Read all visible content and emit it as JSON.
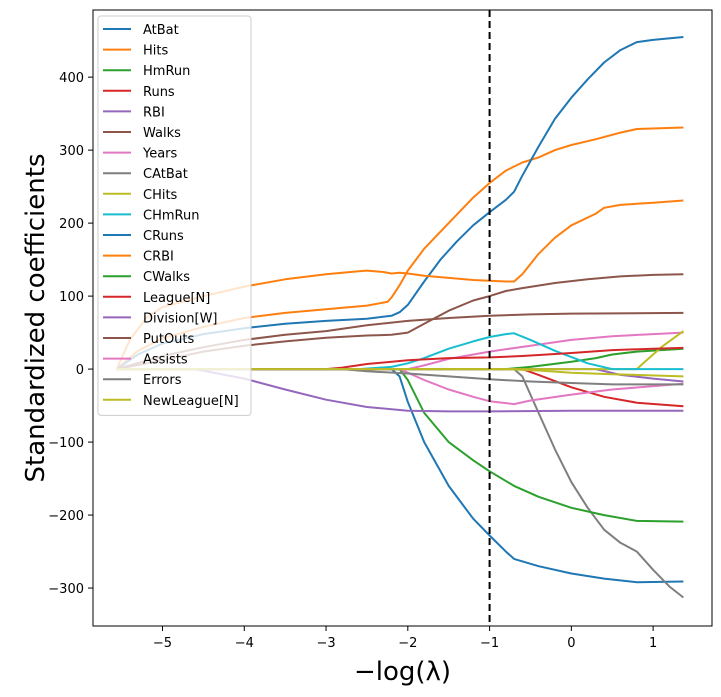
{
  "chart_data": {
    "type": "line",
    "title": "",
    "xlabel": "−log(λ)",
    "ylabel": "Standardized coefficients",
    "xlim": [
      -5.85,
      1.72
    ],
    "ylim": [
      -352,
      492
    ],
    "xticks": [
      -5,
      -4,
      -3,
      -2,
      -1,
      0,
      1
    ],
    "xtick_labels": [
      "−5",
      "−4",
      "−3",
      "−2",
      "−1",
      "0",
      "1"
    ],
    "yticks": [
      -300,
      -200,
      -100,
      0,
      100,
      200,
      300,
      400
    ],
    "ytick_labels": [
      "−300",
      "−200",
      "−100",
      "0",
      "100",
      "200",
      "300",
      "400"
    ],
    "grid": false,
    "legend_position": "upper-left",
    "vline": {
      "x": -1,
      "style": "dashed",
      "color": "#000000"
    },
    "series": [
      {
        "name": "AtBat",
        "color": "#1f77b4",
        "points": [
          [
            -5.56,
            0
          ],
          [
            -2.2,
            0
          ],
          [
            -2.1,
            -10
          ],
          [
            -2,
            -45
          ],
          [
            -1.8,
            -100
          ],
          [
            -1.5,
            -160
          ],
          [
            -1.2,
            -205
          ],
          [
            -1,
            -228
          ],
          [
            -0.8,
            -250
          ],
          [
            -0.7,
            -260
          ],
          [
            -0.4,
            -270
          ],
          [
            0,
            -280
          ],
          [
            0.4,
            -287
          ],
          [
            0.8,
            -292
          ],
          [
            1.37,
            -291
          ]
        ]
      },
      {
        "name": "Hits",
        "color": "#ff7f0e",
        "points": [
          [
            -5.56,
            0
          ],
          [
            -5.3,
            25
          ],
          [
            -5,
            42
          ],
          [
            -4.5,
            58
          ],
          [
            -4,
            70
          ],
          [
            -3.5,
            77
          ],
          [
            -3,
            82
          ],
          [
            -2.5,
            87
          ],
          [
            -2.25,
            92
          ],
          [
            -2.2,
            98
          ],
          [
            -2.1,
            115
          ],
          [
            -2,
            135
          ],
          [
            -1.8,
            165
          ],
          [
            -1.5,
            200
          ],
          [
            -1.2,
            235
          ],
          [
            -1,
            255
          ],
          [
            -0.8,
            272
          ],
          [
            -0.6,
            283
          ],
          [
            -0.4,
            290
          ],
          [
            -0.2,
            300
          ],
          [
            0,
            307
          ],
          [
            0.3,
            315
          ],
          [
            0.6,
            324
          ],
          [
            0.8,
            329
          ],
          [
            1.37,
            331
          ]
        ]
      },
      {
        "name": "HmRun",
        "color": "#2ca02c",
        "points": [
          [
            -5.56,
            0
          ],
          [
            -0.8,
            0
          ],
          [
            -0.5,
            3
          ],
          [
            0,
            10
          ],
          [
            0.3,
            15
          ],
          [
            0.5,
            20
          ],
          [
            0.8,
            24
          ],
          [
            1.37,
            28
          ]
        ]
      },
      {
        "name": "Runs",
        "color": "#d62728",
        "points": [
          [
            -5.56,
            0
          ],
          [
            -0.6,
            0
          ],
          [
            -0.4,
            -8
          ],
          [
            0,
            -25
          ],
          [
            0.4,
            -38
          ],
          [
            0.8,
            -46
          ],
          [
            1.37,
            -51
          ]
        ]
      },
      {
        "name": "RBI",
        "color": "#9467bd",
        "points": [
          [
            -5.56,
            0
          ],
          [
            0.3,
            0
          ],
          [
            0.6,
            -8
          ],
          [
            1.0,
            -13
          ],
          [
            1.37,
            -17
          ]
        ]
      },
      {
        "name": "Walks",
        "color": "#8c564b",
        "points": [
          [
            -5.56,
            0
          ],
          [
            -5,
            12
          ],
          [
            -4.5,
            24
          ],
          [
            -4,
            32
          ],
          [
            -3.5,
            38
          ],
          [
            -3,
            43
          ],
          [
            -2.5,
            46
          ],
          [
            -2.2,
            47
          ],
          [
            -2,
            50
          ],
          [
            -1.8,
            62
          ],
          [
            -1.5,
            80
          ],
          [
            -1.2,
            94
          ],
          [
            -1,
            100
          ],
          [
            -0.8,
            107
          ],
          [
            -0.6,
            111
          ],
          [
            -0.2,
            118
          ],
          [
            0.2,
            123
          ],
          [
            0.6,
            127
          ],
          [
            1.0,
            129
          ],
          [
            1.37,
            130
          ]
        ]
      },
      {
        "name": "Years",
        "color": "#e377c2",
        "points": [
          [
            -5.56,
            0
          ],
          [
            -2,
            0
          ],
          [
            -1.8,
            5
          ],
          [
            -1.5,
            14
          ],
          [
            -1,
            24
          ],
          [
            -0.5,
            32
          ],
          [
            0,
            40
          ],
          [
            0.5,
            45
          ],
          [
            1.0,
            48
          ],
          [
            1.37,
            50
          ]
        ]
      },
      {
        "name": "CAtBat",
        "color": "#7f7f7f",
        "points": [
          [
            -5.56,
            0
          ],
          [
            -0.7,
            0
          ],
          [
            -0.6,
            -10
          ],
          [
            -0.4,
            -60
          ],
          [
            -0.2,
            -110
          ],
          [
            0,
            -155
          ],
          [
            0.2,
            -190
          ],
          [
            0.4,
            -220
          ],
          [
            0.6,
            -238
          ],
          [
            0.8,
            -250
          ],
          [
            1.0,
            -275
          ],
          [
            1.2,
            -298
          ],
          [
            1.37,
            -313
          ]
        ]
      },
      {
        "name": "CHits",
        "color": "#bcbd22",
        "points": [
          [
            -5.56,
            0
          ],
          [
            0.8,
            0
          ],
          [
            0.9,
            10
          ],
          [
            1.1,
            30
          ],
          [
            1.37,
            52
          ]
        ]
      },
      {
        "name": "CHmRun",
        "color": "#17becf",
        "points": [
          [
            -5.56,
            0
          ],
          [
            -2.6,
            0
          ],
          [
            -2.2,
            3
          ],
          [
            -2,
            8
          ],
          [
            -1.8,
            15
          ],
          [
            -1.5,
            28
          ],
          [
            -1.2,
            38
          ],
          [
            -1,
            44
          ],
          [
            -0.8,
            48
          ],
          [
            -0.7,
            49
          ],
          [
            -0.5,
            40
          ],
          [
            -0.2,
            25
          ],
          [
            0.2,
            8
          ],
          [
            0.5,
            0
          ],
          [
            1.37,
            0
          ]
        ]
      },
      {
        "name": "CRuns",
        "color": "#1f77b4",
        "points": [
          [
            -5.56,
            0
          ],
          [
            -5.3,
            20
          ],
          [
            -5,
            35
          ],
          [
            -4.5,
            48
          ],
          [
            -4,
            56
          ],
          [
            -3.5,
            62
          ],
          [
            -3,
            66
          ],
          [
            -2.5,
            69
          ],
          [
            -2.2,
            73
          ],
          [
            -2.1,
            78
          ],
          [
            -2,
            88
          ],
          [
            -1.8,
            120
          ],
          [
            -1.6,
            150
          ],
          [
            -1.4,
            175
          ],
          [
            -1.2,
            197
          ],
          [
            -1,
            215
          ],
          [
            -0.8,
            232
          ],
          [
            -0.7,
            243
          ],
          [
            -0.6,
            265
          ],
          [
            -0.4,
            305
          ],
          [
            -0.2,
            343
          ],
          [
            0,
            372
          ],
          [
            0.2,
            397
          ],
          [
            0.4,
            420
          ],
          [
            0.6,
            437
          ],
          [
            0.8,
            448
          ],
          [
            1.0,
            451
          ],
          [
            1.37,
            455
          ]
        ]
      },
      {
        "name": "CRBI",
        "color": "#ff7f0e",
        "points": [
          [
            -5.56,
            0
          ],
          [
            -5.4,
            40
          ],
          [
            -5.2,
            70
          ],
          [
            -5,
            85
          ],
          [
            -4.5,
            100
          ],
          [
            -4,
            113
          ],
          [
            -3.5,
            123
          ],
          [
            -3,
            130
          ],
          [
            -2.6,
            134
          ],
          [
            -2.5,
            135
          ],
          [
            -2.3,
            133
          ],
          [
            -2.2,
            131
          ],
          [
            -2.1,
            132
          ],
          [
            -2,
            131
          ],
          [
            -1.8,
            128
          ],
          [
            -1.5,
            125
          ],
          [
            -1.2,
            122
          ],
          [
            -1,
            121
          ],
          [
            -0.8,
            120
          ],
          [
            -0.7,
            120
          ],
          [
            -0.6,
            130
          ],
          [
            -0.4,
            158
          ],
          [
            -0.2,
            180
          ],
          [
            0,
            197
          ],
          [
            0.3,
            213
          ],
          [
            0.4,
            221
          ],
          [
            0.6,
            225
          ],
          [
            1.0,
            228
          ],
          [
            1.37,
            231
          ]
        ]
      },
      {
        "name": "CWalks",
        "color": "#2ca02c",
        "points": [
          [
            -5.56,
            0
          ],
          [
            -2.1,
            0
          ],
          [
            -2,
            -15
          ],
          [
            -1.8,
            -60
          ],
          [
            -1.5,
            -100
          ],
          [
            -1.2,
            -125
          ],
          [
            -1,
            -140
          ],
          [
            -0.7,
            -160
          ],
          [
            -0.4,
            -175
          ],
          [
            0,
            -190
          ],
          [
            0.4,
            -200
          ],
          [
            0.8,
            -208
          ],
          [
            1.37,
            -209
          ]
        ]
      },
      {
        "name": "League[N]",
        "color": "#d62728",
        "points": [
          [
            -5.56,
            0
          ],
          [
            -3,
            0
          ],
          [
            -2.8,
            2
          ],
          [
            -2.5,
            7
          ],
          [
            -2,
            12
          ],
          [
            -1.5,
            15
          ],
          [
            -1,
            16
          ],
          [
            -0.6,
            18
          ],
          [
            0,
            22
          ],
          [
            0.5,
            26
          ],
          [
            1.0,
            28
          ],
          [
            1.37,
            29
          ]
        ]
      },
      {
        "name": "Division[W]",
        "color": "#9467bd",
        "points": [
          [
            -5.56,
            0
          ],
          [
            -4.6,
            0
          ],
          [
            -4,
            -13
          ],
          [
            -3.5,
            -28
          ],
          [
            -3,
            -42
          ],
          [
            -2.5,
            -52
          ],
          [
            -2,
            -57
          ],
          [
            -1.5,
            -58
          ],
          [
            -1,
            -58
          ],
          [
            0,
            -57
          ],
          [
            0.5,
            -57
          ],
          [
            1.37,
            -57
          ]
        ]
      },
      {
        "name": "PutOuts",
        "color": "#8c564b",
        "points": [
          [
            -5.56,
            0
          ],
          [
            -5,
            18
          ],
          [
            -4.5,
            30
          ],
          [
            -4,
            40
          ],
          [
            -3.5,
            47
          ],
          [
            -3,
            52
          ],
          [
            -2.5,
            60
          ],
          [
            -2,
            66
          ],
          [
            -1.5,
            70
          ],
          [
            -1,
            73
          ],
          [
            -0.5,
            75
          ],
          [
            0,
            76
          ],
          [
            1.37,
            77
          ]
        ]
      },
      {
        "name": "Assists",
        "color": "#e377c2",
        "points": [
          [
            -5.56,
            0
          ],
          [
            -2.1,
            0
          ],
          [
            -2,
            -5
          ],
          [
            -1.8,
            -15
          ],
          [
            -1.5,
            -28
          ],
          [
            -1.2,
            -38
          ],
          [
            -1,
            -44
          ],
          [
            -0.7,
            -48
          ],
          [
            -0.5,
            -43
          ],
          [
            0,
            -35
          ],
          [
            0.5,
            -28
          ],
          [
            1.37,
            -20
          ]
        ]
      },
      {
        "name": "Errors",
        "color": "#7f7f7f",
        "points": [
          [
            -5.56,
            0
          ],
          [
            -2.8,
            0
          ],
          [
            -2.5,
            -3
          ],
          [
            -2,
            -6
          ],
          [
            -1.5,
            -10
          ],
          [
            -1,
            -14
          ],
          [
            -0.5,
            -17
          ],
          [
            0,
            -19
          ],
          [
            0.5,
            -21
          ],
          [
            1.37,
            -21
          ]
        ]
      },
      {
        "name": "NewLeague[N]",
        "color": "#bcbd22",
        "points": [
          [
            -5.56,
            0
          ],
          [
            -0.8,
            0
          ],
          [
            -0.4,
            -2
          ],
          [
            0,
            -5
          ],
          [
            0.5,
            -7
          ],
          [
            1.37,
            -10
          ]
        ]
      }
    ]
  }
}
